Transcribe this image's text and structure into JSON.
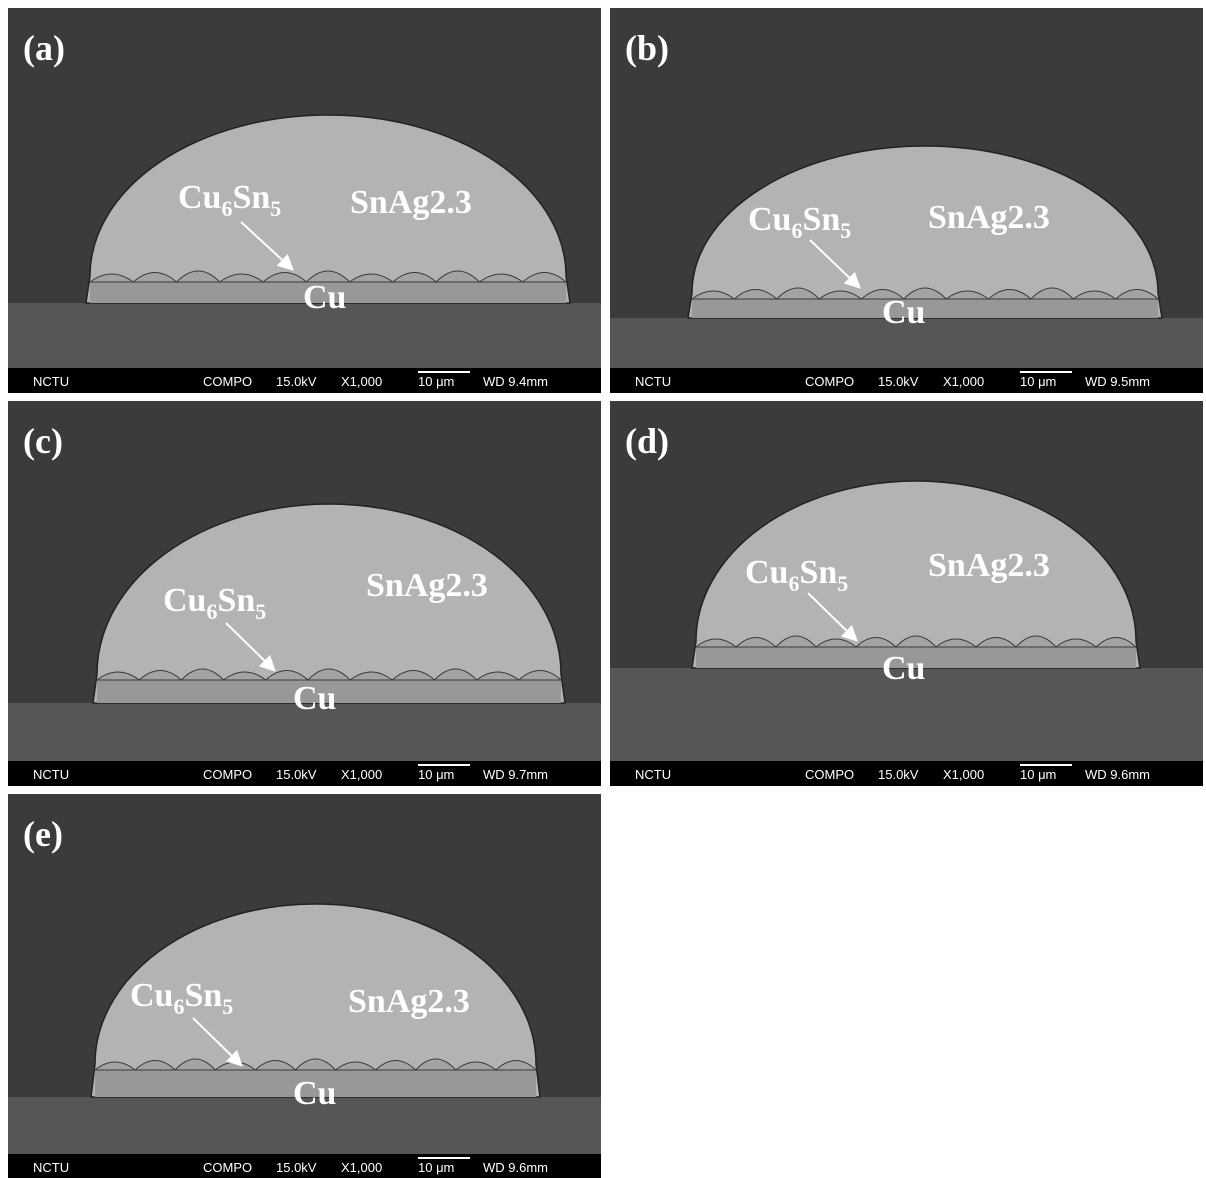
{
  "panels": [
    {
      "label": "(a)",
      "intermetallic": {
        "element1": "Cu",
        "count1": "6",
        "element2": "Sn",
        "count2": "5"
      },
      "solder": "SnAg2.3",
      "pad": "Cu",
      "info_bar": {
        "lab": "NCTU",
        "mode": "COMPO",
        "voltage": "15.0kV",
        "magnification": "X1,000",
        "scale": "10 μm",
        "working_distance": "WD 9.4mm"
      }
    },
    {
      "label": "(b)",
      "intermetallic": {
        "element1": "Cu",
        "count1": "6",
        "element2": "Sn",
        "count2": "5"
      },
      "solder": "SnAg2.3",
      "pad": "Cu",
      "info_bar": {
        "lab": "NCTU",
        "mode": "COMPO",
        "voltage": "15.0kV",
        "magnification": "X1,000",
        "scale": "10 μm",
        "working_distance": "WD 9.5mm"
      }
    },
    {
      "label": "(c)",
      "intermetallic": {
        "element1": "Cu",
        "count1": "6",
        "element2": "Sn",
        "count2": "5"
      },
      "solder": "SnAg2.3",
      "pad": "Cu",
      "info_bar": {
        "lab": "NCTU",
        "mode": "COMPO",
        "voltage": "15.0kV",
        "magnification": "X1,000",
        "scale": "10 μm",
        "working_distance": "WD 9.7mm"
      }
    },
    {
      "label": "(d)",
      "intermetallic": {
        "element1": "Cu",
        "count1": "6",
        "element2": "Sn",
        "count2": "5"
      },
      "solder": "SnAg2.3",
      "pad": "Cu",
      "info_bar": {
        "lab": "NCTU",
        "mode": "COMPO",
        "voltage": "15.0kV",
        "magnification": "X1,000",
        "scale": "10 μm",
        "working_distance": "WD 9.6mm"
      }
    },
    {
      "label": "(e)",
      "intermetallic": {
        "element1": "Cu",
        "count1": "6",
        "element2": "Sn",
        "count2": "5"
      },
      "solder": "SnAg2.3",
      "pad": "Cu",
      "info_bar": {
        "lab": "NCTU",
        "mode": "COMPO",
        "voltage": "15.0kV",
        "magnification": "X1,000",
        "scale": "10 μm",
        "working_distance": "WD 9.6mm"
      }
    }
  ]
}
